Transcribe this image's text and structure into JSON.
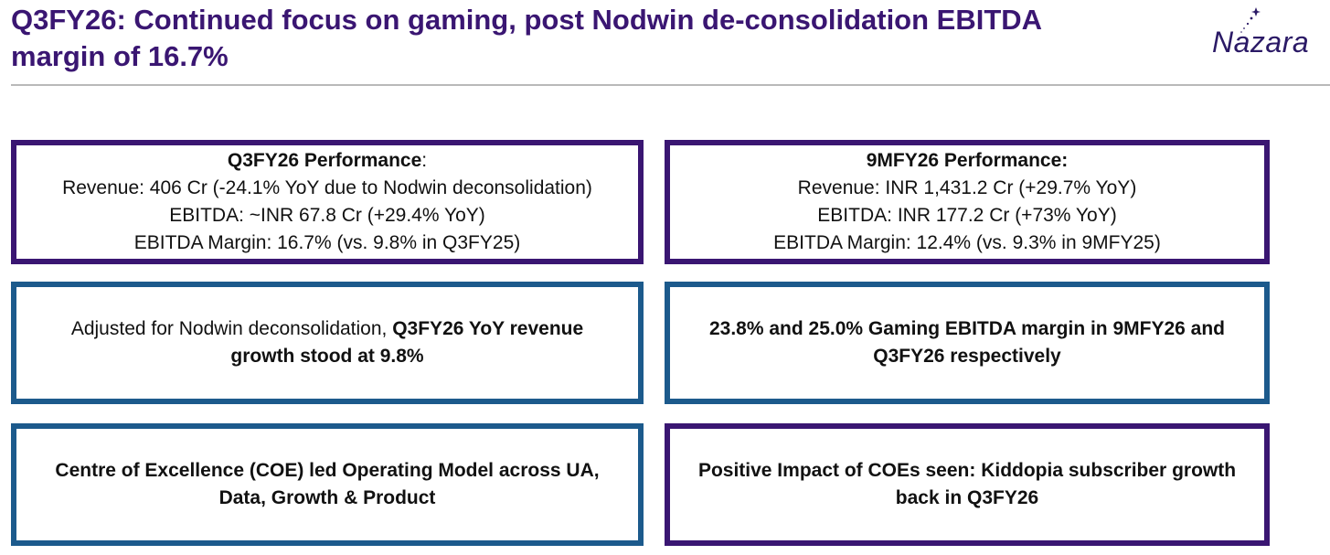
{
  "header": {
    "title_line1": "Q3FY26: Continued focus on gaming, post Nodwin de-consolidation EBITDA",
    "title_line2": "margin of 16.7%",
    "logo_text": "Nazara"
  },
  "boxes": {
    "q3_performance": {
      "heading": "Q3FY26 Performance",
      "heading_suffix": ":",
      "revenue": "Revenue: 406 Cr (-24.1% YoY due to Nodwin deconsolidation)",
      "ebitda": "EBITDA: ~INR 67.8 Cr (+29.4% YoY)",
      "margin": "EBITDA Margin: 16.7% (vs. 9.8% in Q3FY25)"
    },
    "nine_m_performance": {
      "heading": "9MFY26 Performance:",
      "revenue": "Revenue: INR 1,431.2 Cr (+29.7% YoY)",
      "ebitda": "EBITDA: INR 177.2 Cr (+73% YoY)",
      "margin": "EBITDA Margin: 12.4% (vs. 9.3% in 9MFY25)"
    },
    "adjusted": {
      "prefix": "Adjusted for Nodwin deconsolidation, ",
      "bold_part": "Q3FY26 YoY revenue",
      "line2": "growth stood at 9.8%"
    },
    "gaming_margin": {
      "line1": "23.8% and 25.0% Gaming EBITDA margin in 9MFY26 and",
      "line2": "Q3FY26 respectively"
    },
    "coe_model": {
      "line1": "Centre of Excellence (COE) led Operating Model across UA,",
      "line2": "Data, Growth & Product"
    },
    "coe_impact": {
      "line1": "Positive Impact of COEs seen: Kiddopia subscriber growth",
      "line2": "back in Q3FY26"
    }
  },
  "colors": {
    "purple": "#3a1672",
    "blue": "#1c5a8c"
  }
}
